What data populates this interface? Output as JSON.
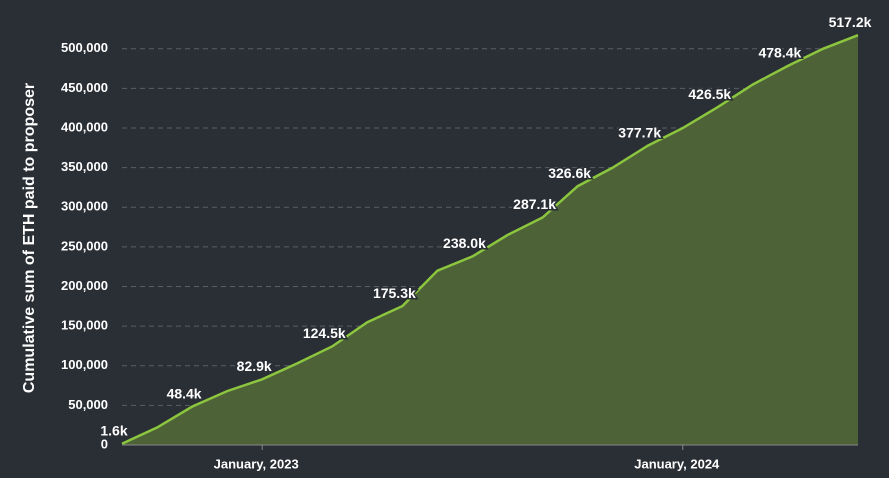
{
  "chart_data": {
    "type": "area",
    "y_label": "Cumulative sum of ETH paid to proposer",
    "x": [
      "2022-09",
      "2022-10",
      "2022-11",
      "2022-12",
      "2023-01",
      "2023-02",
      "2023-03",
      "2023-04",
      "2023-05",
      "2023-06",
      "2023-07",
      "2023-08",
      "2023-09",
      "2023-10",
      "2023-11",
      "2023-12",
      "2024-01",
      "2024-02",
      "2024-03",
      "2024-04",
      "2024-05",
      "2024-06"
    ],
    "series": [
      {
        "name": "Cumulative ETH",
        "color": "#8cc63f",
        "fill": "#4e6237",
        "values": [
          1600,
          22000,
          48400,
          68000,
          82900,
          103000,
          124500,
          155000,
          175300,
          220000,
          238000,
          265000,
          287100,
          326600,
          350000,
          377700,
          400000,
          426500,
          455000,
          478400,
          500000,
          517200
        ],
        "value_labels": [
          "1.6k",
          null,
          "48.4k",
          null,
          "82.9k",
          null,
          "124.5k",
          null,
          "175.3k",
          null,
          "238.0k",
          null,
          "287.1k",
          "326.6k",
          null,
          "377.7k",
          null,
          "426.5k",
          null,
          "478.4k",
          null,
          "517.2k"
        ]
      }
    ],
    "ylim": [
      0,
      525000
    ],
    "yticks": [
      0,
      {
        "value": 50000,
        "label": "50,000"
      },
      {
        "value": 100000,
        "label": "100,000"
      },
      {
        "value": 150000,
        "label": "150,000"
      },
      {
        "value": 200000,
        "label": "200,000"
      },
      {
        "value": 250000,
        "label": "250,000"
      },
      {
        "value": 300000,
        "label": "300,000"
      },
      {
        "value": 350000,
        "label": "350,000"
      },
      {
        "value": 400000,
        "label": "400,000"
      },
      {
        "value": 450000,
        "label": "450,000"
      },
      {
        "value": 500000,
        "label": "500,000"
      }
    ],
    "xticks": [
      {
        "value": "2023-01",
        "label": "January, 2023"
      },
      {
        "value": "2024-01",
        "label": "January, 2024"
      }
    ],
    "grid": true
  }
}
